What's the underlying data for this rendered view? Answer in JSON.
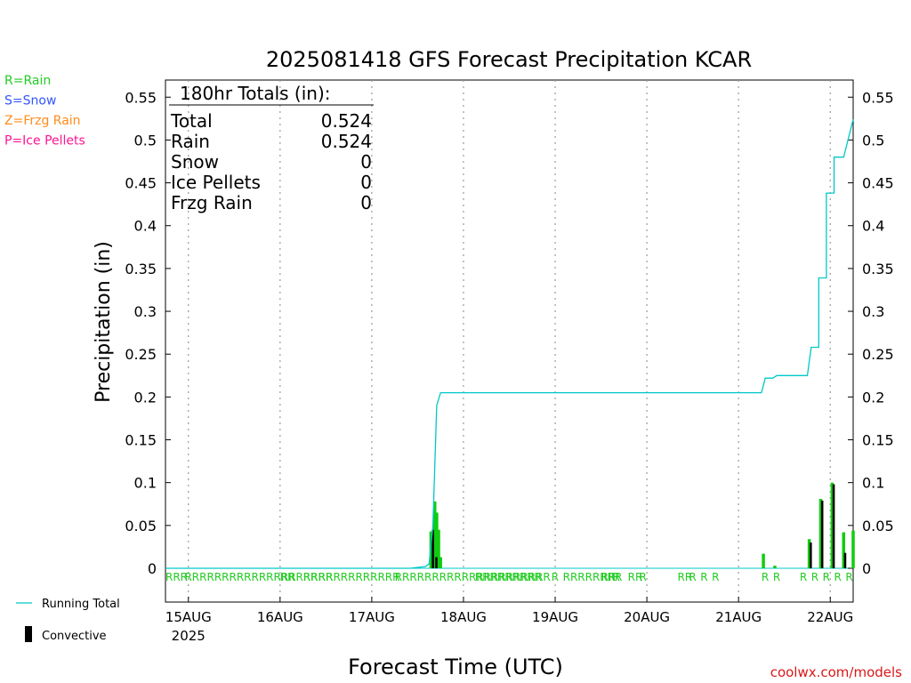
{
  "chart_data": {
    "type": "bar",
    "title": "2025081418 GFS Forecast Precipitation KCAR",
    "xlabel": "Forecast Time (UTC)",
    "ylabel": "Precipitation (in)",
    "ylim": [
      0,
      0.57
    ],
    "y_ticks": [
      0,
      0.05,
      0.1,
      0.15,
      0.2,
      0.25,
      0.3,
      0.35,
      0.4,
      0.45,
      0.5,
      0.55
    ],
    "y_tick_labels": [
      "0",
      "0.05",
      "0.1",
      "0.15",
      "0.2",
      "0.25",
      "0.3",
      "0.35",
      "0.4",
      "0.45",
      "0.5",
      "0.55"
    ],
    "x_ticks": [
      {
        "hour": 6,
        "label": "15AUG",
        "sublabel": "2025"
      },
      {
        "hour": 30,
        "label": "16AUG"
      },
      {
        "hour": 54,
        "label": "17AUG"
      },
      {
        "hour": 78,
        "label": "18AUG"
      },
      {
        "hour": 102,
        "label": "19AUG"
      },
      {
        "hour": 126,
        "label": "20AUG"
      },
      {
        "hour": 150,
        "label": "21AUG"
      },
      {
        "hour": 174,
        "label": "22AUG"
      }
    ],
    "x_range_hours": [
      0,
      180
    ],
    "grid": "vertical dotted at day boundaries",
    "legend_left": [
      {
        "text": "R=Rain",
        "color": "#22cc22"
      },
      {
        "text": "S=Snow",
        "color": "#3355ff"
      },
      {
        "text": "Z=Frzg Rain",
        "color": "#ff8c1a"
      },
      {
        "text": "P=Ice Pellets",
        "color": "#ff1493"
      }
    ],
    "legend_bottom": [
      {
        "text": "Running Total",
        "color": "#00c8c8",
        "kind": "line"
      },
      {
        "text": "Convective",
        "color": "#000000",
        "kind": "bar"
      }
    ],
    "totals": {
      "header": "180hr Totals (in):",
      "rows": [
        {
          "name": "Total",
          "value": "0.524"
        },
        {
          "name": "Rain",
          "value": "0.524"
        },
        {
          "name": "Snow",
          "value": "0"
        },
        {
          "name": "Ice Pellets",
          "value": "0"
        },
        {
          "name": "Frzg Rain",
          "value": "0"
        }
      ]
    },
    "credit": "coolwx.com/models",
    "series": [
      {
        "name": "Running Total",
        "color": "#00c8c8",
        "points": [
          [
            0,
            0
          ],
          [
            64,
            0
          ],
          [
            66,
            0.001
          ],
          [
            68,
            0.002
          ],
          [
            69,
            0.005
          ],
          [
            70,
            0.05
          ],
          [
            71,
            0.19
          ],
          [
            72,
            0.205
          ],
          [
            93,
            0.205
          ],
          [
            120,
            0.205
          ],
          [
            144,
            0.205
          ],
          [
            156,
            0.205
          ],
          [
            157,
            0.222
          ],
          [
            159,
            0.222
          ],
          [
            160,
            0.225
          ],
          [
            168,
            0.225
          ],
          [
            169,
            0.258
          ],
          [
            171,
            0.258
          ],
          [
            171,
            0.339
          ],
          [
            173,
            0.339
          ],
          [
            173,
            0.438
          ],
          [
            175,
            0.438
          ],
          [
            175,
            0.48
          ],
          [
            177,
            0.48
          ],
          [
            177.5,
            0.48
          ],
          [
            180,
            0.524
          ]
        ]
      },
      {
        "name": "Rain",
        "color": "#11cc11",
        "bars": [
          [
            69.5,
            0.043
          ],
          [
            70.5,
            0.078
          ],
          [
            71,
            0.065
          ],
          [
            71.5,
            0.045
          ],
          [
            72,
            0.013
          ],
          [
            156.5,
            0.017
          ],
          [
            159.5,
            0.003
          ],
          [
            168.5,
            0.034
          ],
          [
            171.5,
            0.081
          ],
          [
            174.5,
            0.1
          ],
          [
            177.5,
            0.042
          ],
          [
            180,
            0.044
          ]
        ]
      },
      {
        "name": "Convective",
        "color": "#000000",
        "bars": [
          [
            70,
            0.045
          ],
          [
            70.9,
            0.013
          ],
          [
            168.9,
            0.03
          ],
          [
            171.9,
            0.079
          ],
          [
            174.9,
            0.098
          ],
          [
            177.9,
            0.018
          ]
        ]
      }
    ],
    "ptype_row": {
      "color": "#22cc22",
      "marks": [
        [
          0,
          "RRR"
        ],
        [
          5,
          "RRRRRRRRRRRRRRRRRRRR"
        ],
        [
          30,
          "RR"
        ],
        [
          36,
          "RR"
        ],
        [
          40,
          "RRRRRRRRRRR"
        ],
        [
          60,
          "RRRRRRRRRRRRRRRRRRRRR"
        ],
        [
          81,
          "RRRRRRRRR"
        ],
        [
          101,
          "R"
        ],
        [
          104,
          "RRRRRRRR"
        ],
        [
          114,
          "RR"
        ],
        [
          117,
          "R"
        ],
        [
          121,
          "RR"
        ],
        [
          124,
          "R"
        ],
        [
          134,
          "RR"
        ],
        [
          137,
          "R"
        ],
        [
          140,
          "R"
        ],
        [
          143,
          "R"
        ],
        [
          156,
          "R"
        ],
        [
          159,
          "R"
        ],
        [
          166,
          "R"
        ],
        [
          169,
          "R"
        ],
        [
          172,
          "R"
        ],
        [
          175,
          "R"
        ],
        [
          178,
          "R"
        ]
      ]
    }
  }
}
